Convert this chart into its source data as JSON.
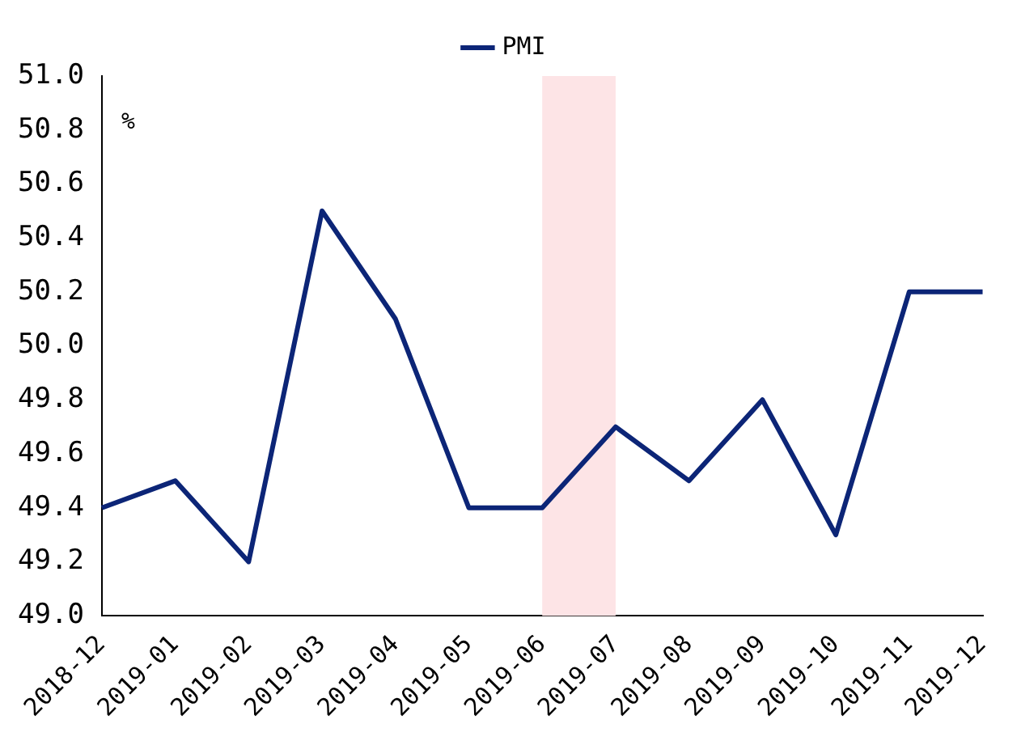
{
  "chart_data": {
    "type": "line",
    "ylabel": "%",
    "categories": [
      "2018-12",
      "2019-01",
      "2019-02",
      "2019-03",
      "2019-04",
      "2019-05",
      "2019-06",
      "2019-07",
      "2019-08",
      "2019-09",
      "2019-10",
      "2019-11",
      "2019-12"
    ],
    "series": [
      {
        "name": "PMI",
        "color": "#0c2577",
        "values": [
          49.4,
          49.5,
          49.2,
          50.5,
          50.1,
          49.4,
          49.4,
          49.7,
          49.5,
          49.8,
          49.3,
          50.2,
          50.2
        ]
      }
    ],
    "ylim": [
      49.0,
      51.0
    ],
    "yticks": [
      {
        "value": 49.0,
        "label": "49.0"
      },
      {
        "value": 49.2,
        "label": "49.2"
      },
      {
        "value": 49.4,
        "label": "49.4"
      },
      {
        "value": 49.6,
        "label": "49.6"
      },
      {
        "value": 49.8,
        "label": "49.8"
      },
      {
        "value": 50.0,
        "label": "50.0"
      },
      {
        "value": 50.2,
        "label": "50.2"
      },
      {
        "value": 50.4,
        "label": "50.4"
      },
      {
        "value": 50.6,
        "label": "50.6"
      },
      {
        "value": 50.8,
        "label": "50.8"
      },
      {
        "value": 51.0,
        "label": "51.0"
      }
    ],
    "bands": [
      {
        "axis": "x",
        "from": "2019-06",
        "to": "2019-07",
        "color": "#fde4e6"
      }
    ],
    "legend": "top",
    "grid": false,
    "marker": "none",
    "line_style": "solid"
  }
}
